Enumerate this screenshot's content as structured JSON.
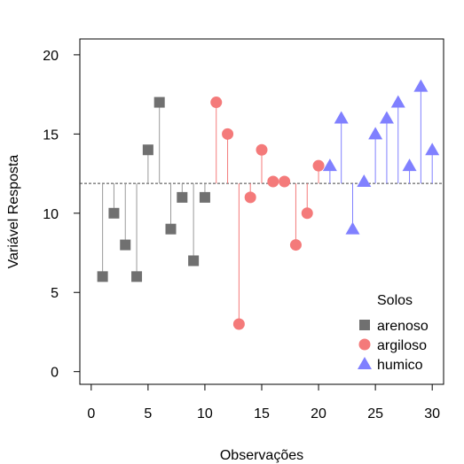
{
  "chart_data": {
    "type": "scatter",
    "xlabel": "Observações",
    "ylabel": "Variável Resposta",
    "xlim": [
      -1,
      31
    ],
    "ylim": [
      -0.8,
      21
    ],
    "x_ticks": [
      0,
      5,
      10,
      15,
      20,
      25,
      30
    ],
    "y_ticks": [
      0,
      5,
      10,
      15,
      20
    ],
    "reference_line": 11.88,
    "legend": {
      "title": "Solos",
      "placement": "bottom-right"
    },
    "series": [
      {
        "name": "arenoso",
        "marker": "square",
        "color": "#707070",
        "stem_color": "#9a9a9a",
        "x": [
          1,
          2,
          3,
          4,
          5,
          6,
          7,
          8,
          9,
          10
        ],
        "y": [
          6,
          10,
          8,
          6,
          14,
          17,
          9,
          11,
          7,
          11
        ]
      },
      {
        "name": "argiloso",
        "marker": "circle",
        "color": "#f47a7a",
        "stem_color": "#f47a7a",
        "x": [
          11,
          12,
          13,
          14,
          15,
          16,
          17,
          18,
          19,
          20
        ],
        "y": [
          17,
          15,
          3,
          11,
          14,
          12,
          12,
          8,
          10,
          13
        ]
      },
      {
        "name": "humico",
        "marker": "triangle",
        "color": "#8080ff",
        "stem_color": "#8080ff",
        "x": [
          21,
          22,
          23,
          24,
          25,
          26,
          27,
          28,
          29,
          30
        ],
        "y": [
          13,
          16,
          9,
          12,
          15,
          16,
          17,
          13,
          18,
          14
        ]
      }
    ]
  }
}
